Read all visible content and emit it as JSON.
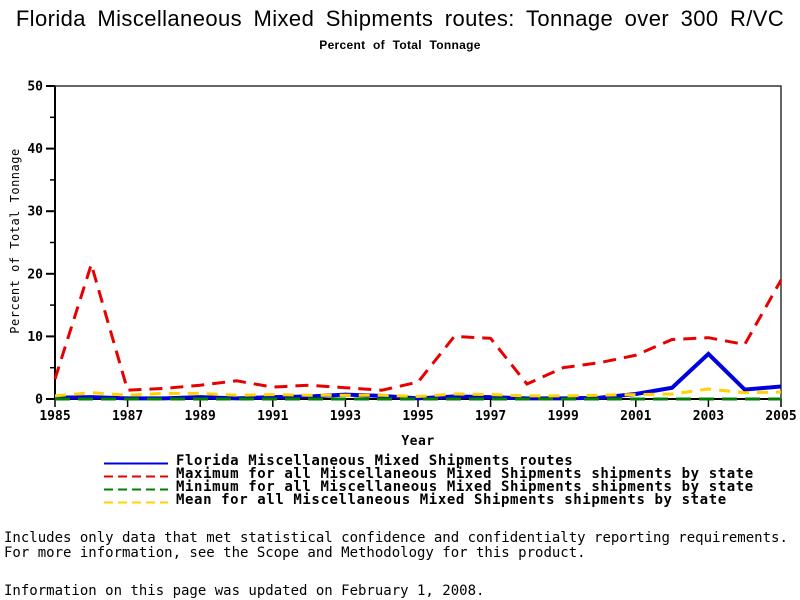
{
  "header": {
    "title": "Florida Miscellaneous Mixed Shipments routes: Tonnage over 300 R/VC",
    "subtitle": "Percent of Total Tonnage"
  },
  "chart_data": {
    "type": "line",
    "title": "Florida Miscellaneous Mixed Shipments routes: Tonnage over 300 R/VC",
    "subtitle": "Percent of Total Tonnage",
    "xlabel": "Year",
    "ylabel": "Percent of Total Tonnage",
    "xlim": [
      1985,
      2005
    ],
    "ylim": [
      0,
      50
    ],
    "x_tick_labels": [
      1985,
      1987,
      1989,
      1991,
      1993,
      1995,
      1997,
      1999,
      2001,
      2003,
      2005
    ],
    "y_major_ticks": [
      0,
      10,
      20,
      30,
      40,
      50
    ],
    "y_minor_ticks": [
      5,
      15,
      25,
      35,
      45
    ],
    "grid": "off",
    "legend_position": "bottom",
    "x": [
      1985,
      1986,
      1987,
      1988,
      1989,
      1990,
      1991,
      1992,
      1993,
      1994,
      1995,
      1996,
      1997,
      1998,
      1999,
      2000,
      2001,
      2002,
      2003,
      2004,
      2005
    ],
    "series": [
      {
        "name": "Florida Miscellaneous Mixed Shipments routes",
        "color": "#0000DE",
        "style": "solid",
        "values": [
          0.2,
          0.3,
          0.1,
          0.1,
          0.3,
          0.1,
          0.3,
          0.4,
          0.7,
          0.5,
          0.1,
          0.4,
          0.3,
          0.1,
          0.1,
          0.2,
          0.8,
          1.8,
          7.2,
          1.5,
          2.0
        ]
      },
      {
        "name": "Maximum for all Miscellaneous Mixed Shipments shipments by state",
        "color": "#E60000",
        "style": "dashed",
        "values": [
          3.2,
          21.5,
          1.4,
          1.7,
          2.2,
          2.9,
          1.9,
          2.2,
          1.8,
          1.4,
          2.7,
          10.0,
          9.7,
          2.4,
          5.0,
          5.8,
          7.0,
          9.5,
          9.8,
          8.7,
          19.0
        ]
      },
      {
        "name": "Minimum for all Miscellaneous Mixed Shipments shipments by state",
        "color": "#008000",
        "style": "dashed",
        "values": [
          0,
          0,
          0,
          0,
          0,
          0,
          0,
          0,
          0,
          0,
          0,
          0,
          0,
          0,
          0,
          0,
          0,
          0,
          0,
          0,
          0
        ]
      },
      {
        "name": "Mean for all Miscellaneous Mixed Shipments shipments by state",
        "color": "#FFD200",
        "style": "dashed",
        "values": [
          0.5,
          1.0,
          0.6,
          0.9,
          0.9,
          0.6,
          0.7,
          0.6,
          0.6,
          0.6,
          0.4,
          0.8,
          0.7,
          0.5,
          0.5,
          0.6,
          0.7,
          0.8,
          1.6,
          1.0,
          1.1
        ]
      }
    ]
  },
  "footnotes": {
    "line1": "Includes only data that met statistical confidence and confidentialty reporting requirements.",
    "line2": "For more information, see the Scope and Methodology for this product.",
    "updated": "Information on this page was updated on February 1, 2008."
  }
}
